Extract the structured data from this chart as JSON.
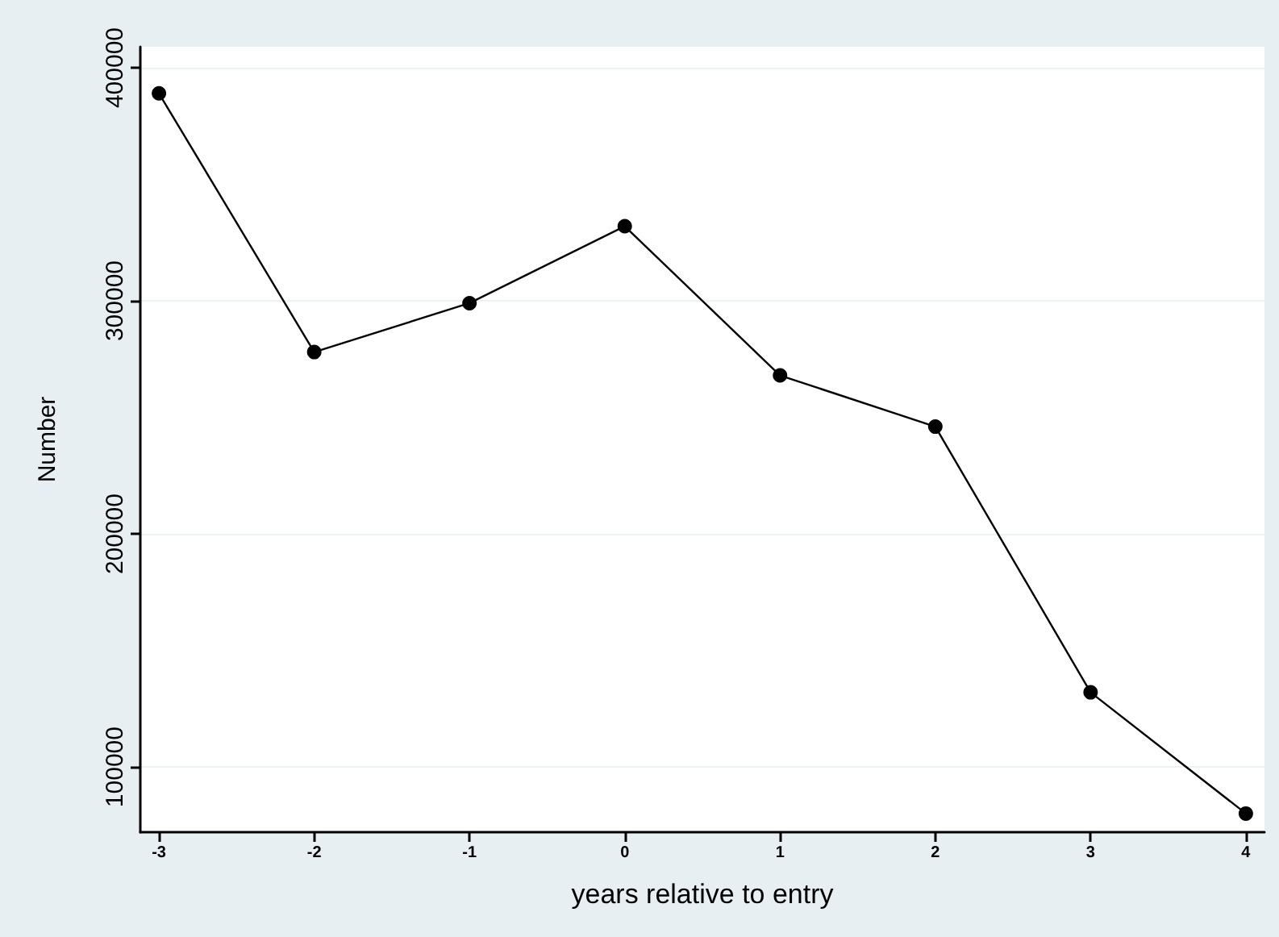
{
  "chart_data": {
    "type": "line",
    "xlabel": "years relative to entry",
    "ylabel": "Number",
    "x": [
      -3,
      -2,
      -1,
      0,
      1,
      2,
      3,
      4
    ],
    "series": [
      {
        "color": "#000000",
        "values": [
          389000,
          278000,
          299000,
          332000,
          268000,
          246000,
          132000,
          80000
        ]
      }
    ],
    "xlim": [
      -3.12,
      4.12
    ],
    "xticks": [
      -3,
      -2,
      -1,
      0,
      1,
      2,
      3,
      4
    ],
    "ylim": [
      72000,
      409000
    ],
    "yticks": [
      100000,
      200000,
      300000,
      400000
    ],
    "grid": "y",
    "marker": "circle",
    "line_style": "solid"
  }
}
